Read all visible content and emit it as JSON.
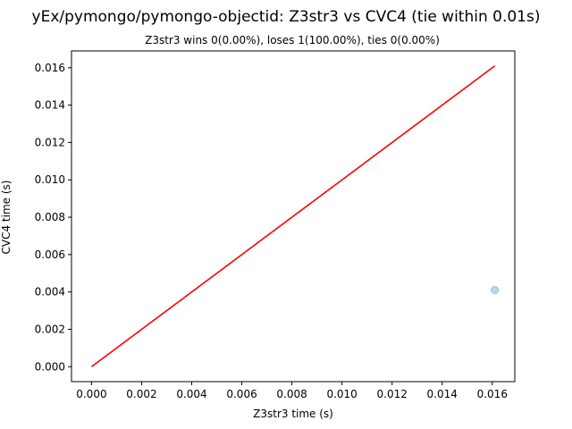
{
  "chart_data": {
    "type": "scatter",
    "title": "yEx/pymongo/pymongo-objectid: Z3str3 vs CVC4 (tie within 0.01s)",
    "subtitle": "Z3str3 wins 0(0.00%), loses 1(100.00%), ties 0(0.00%)",
    "xlabel": "Z3str3 time (s)",
    "ylabel": "CVC4 time (s)",
    "xlim": [
      -0.0008,
      0.0169
    ],
    "ylim": [
      -0.0008,
      0.0169
    ],
    "x_ticks": [
      "0.000",
      "0.002",
      "0.004",
      "0.006",
      "0.008",
      "0.010",
      "0.012",
      "0.014",
      "0.016"
    ],
    "y_ticks": [
      "0.000",
      "0.002",
      "0.004",
      "0.006",
      "0.008",
      "0.010",
      "0.012",
      "0.014",
      "0.016"
    ],
    "grid": false,
    "points": [
      {
        "x": 0.0161,
        "y": 0.0041
      }
    ],
    "reference_line": {
      "x": [
        0.0,
        0.0161
      ],
      "y": [
        0.0,
        0.0161
      ]
    },
    "colors": {
      "point": "#1f77b4",
      "reference_line": "#ff0000"
    }
  }
}
